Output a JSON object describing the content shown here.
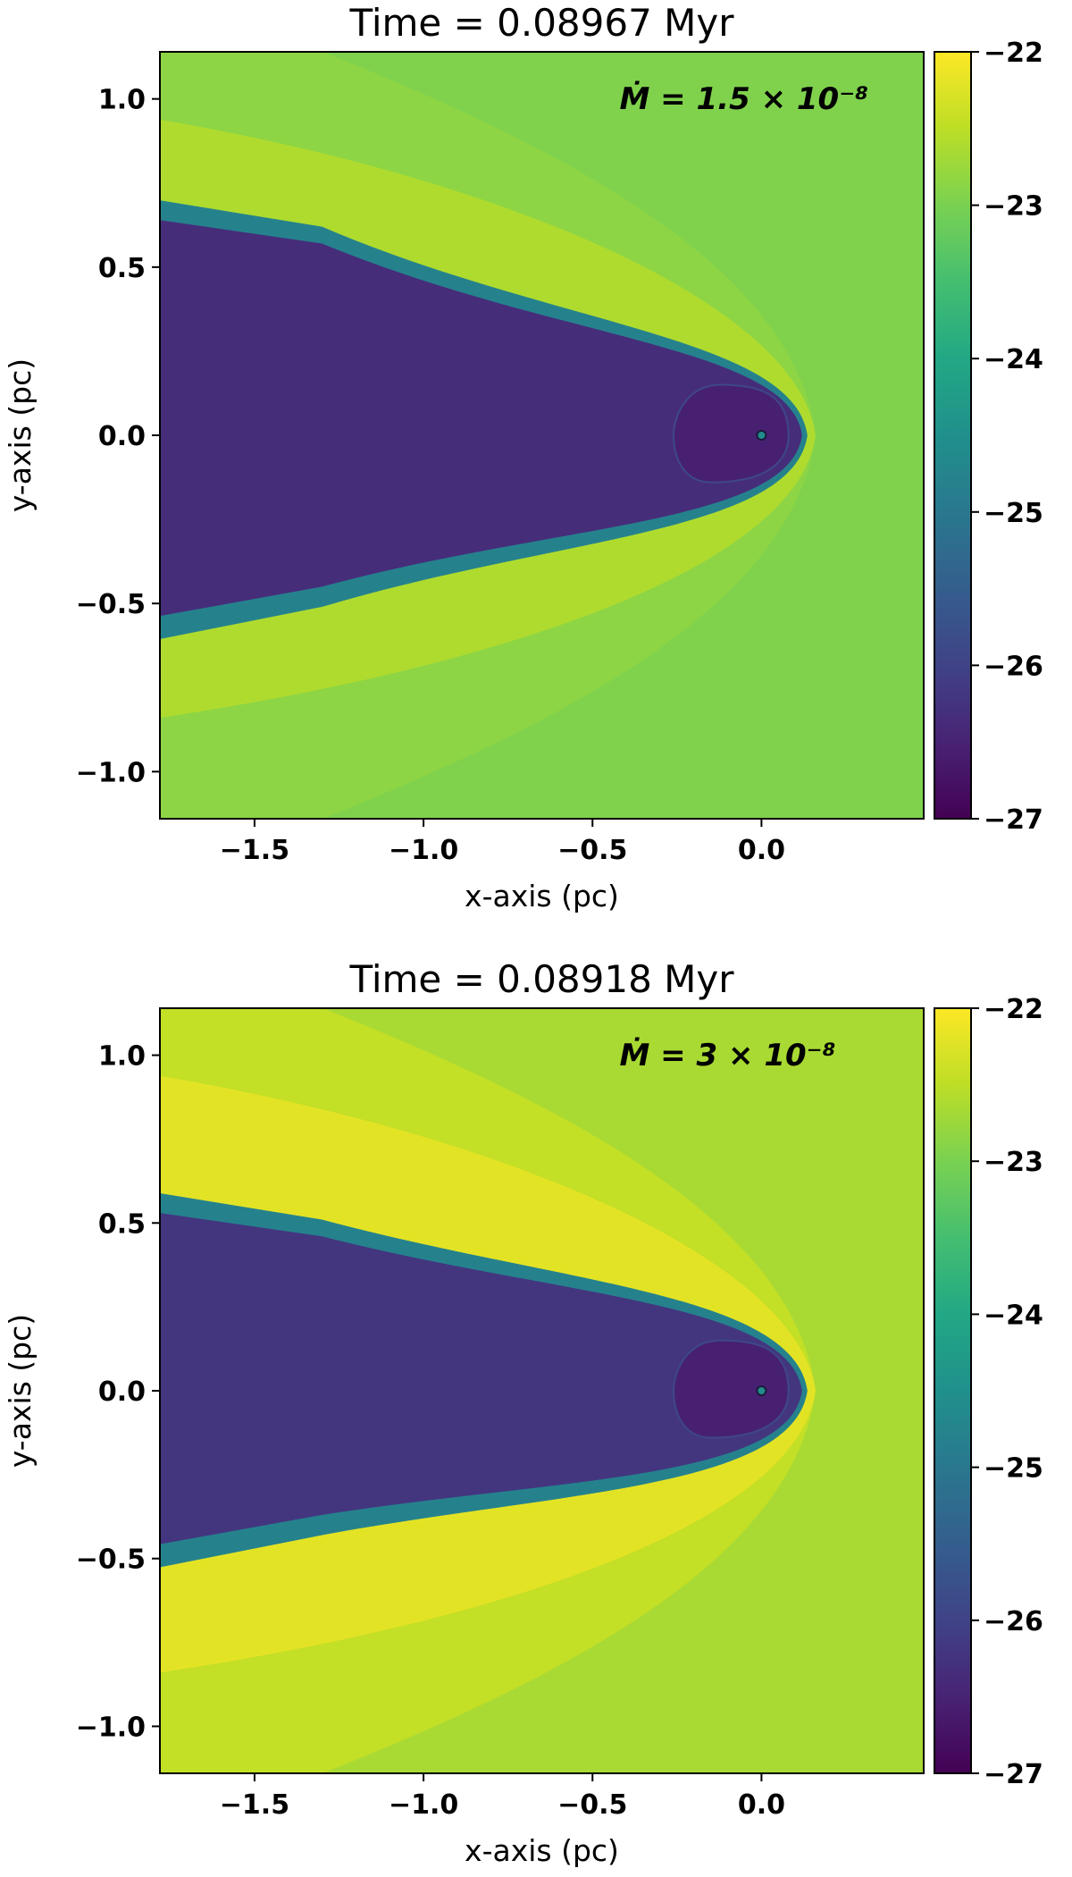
{
  "chart_data": [
    {
      "type": "heatmap",
      "title": "Time = 0.08967 Myr",
      "xlabel": "x-axis (pc)",
      "ylabel": "y-axis (pc)",
      "xlim": [
        -1.78,
        0.48
      ],
      "ylim": [
        -1.14,
        1.14
      ],
      "xticks": [
        -1.5,
        -1.0,
        -0.5,
        0.0
      ],
      "xtick_labels": [
        "−1.5",
        "−1.0",
        "−0.5",
        "0.0"
      ],
      "yticks": [
        1.0,
        0.5,
        0.0,
        -0.5,
        -1.0
      ],
      "ytick_labels": [
        "1.0",
        "0.5",
        "0.0",
        "−0.5",
        "−1.0"
      ],
      "colorbar": {
        "min": -27,
        "max": -22,
        "colormap": "viridis",
        "ticks": [
          -22,
          -23,
          -24,
          -25,
          -26,
          -27
        ],
        "tick_labels": [
          "−22",
          "−23",
          "−24",
          "−25",
          "−26",
          "−27"
        ]
      },
      "annotation": "Ṁ = 1.5 × 10⁻⁸",
      "field": {
        "ambient": -22.95,
        "shell": -22.6,
        "outer_wing": -22.85,
        "cavity": -26.35,
        "inner_bubble": -26.55,
        "star_position": [
          0.0,
          0.0
        ]
      }
    },
    {
      "type": "heatmap",
      "title": "Time = 0.08918 Myr",
      "xlabel": "x-axis (pc)",
      "ylabel": "y-axis (pc)",
      "xlim": [
        -1.78,
        0.48
      ],
      "ylim": [
        -1.14,
        1.14
      ],
      "xticks": [
        -1.5,
        -1.0,
        -0.5,
        0.0
      ],
      "xtick_labels": [
        "−1.5",
        "−1.0",
        "−0.5",
        "0.0"
      ],
      "yticks": [
        1.0,
        0.5,
        0.0,
        -0.5,
        -1.0
      ],
      "ytick_labels": [
        "1.0",
        "0.5",
        "0.0",
        "−0.5",
        "−1.0"
      ],
      "colorbar": {
        "min": -27,
        "max": -22,
        "colormap": "viridis",
        "ticks": [
          -22,
          -23,
          -24,
          -25,
          -26,
          -27
        ],
        "tick_labels": [
          "−22",
          "−23",
          "−24",
          "−25",
          "−26",
          "−27"
        ]
      },
      "annotation": "Ṁ = 3 × 10⁻⁸",
      "field": {
        "ambient": -22.65,
        "shell": -22.2,
        "outer_wing": -22.45,
        "cavity": -26.2,
        "inner_bubble": -26.55,
        "star_position": [
          0.0,
          0.0
        ]
      }
    }
  ]
}
